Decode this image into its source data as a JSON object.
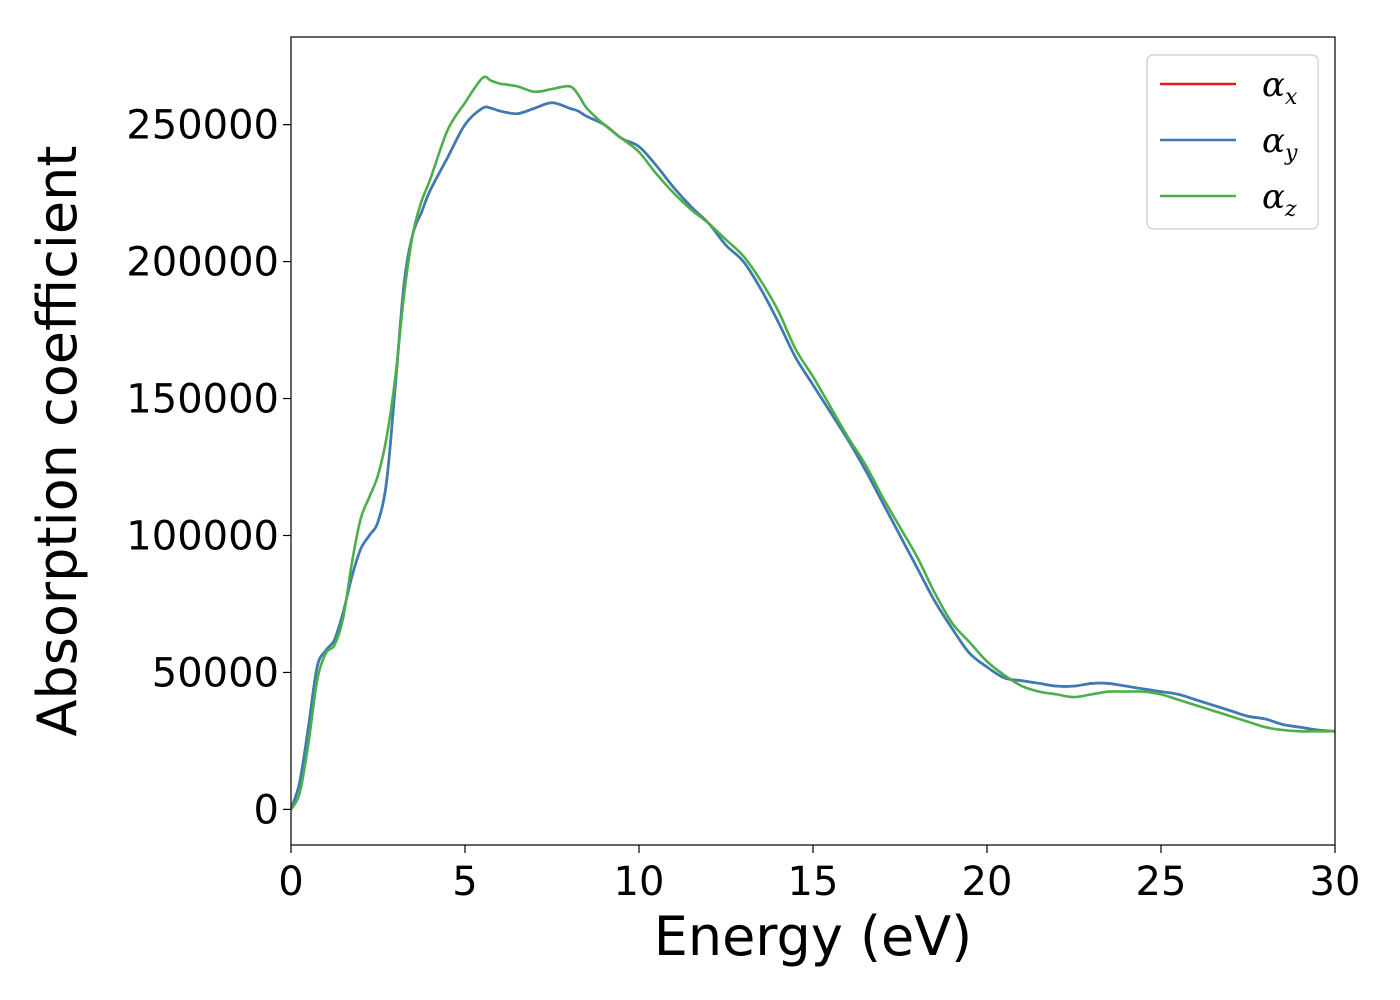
{
  "chart_data": {
    "type": "line",
    "title": "",
    "xlabel": "Energy (eV)",
    "ylabel": "Absorption coefficient",
    "xlim": [
      0,
      30
    ],
    "ylim": [
      -13000,
      282000
    ],
    "xticks": [
      0,
      5,
      10,
      15,
      20,
      25,
      30
    ],
    "xtick_labels": [
      "0",
      "5",
      "10",
      "15",
      "20",
      "25",
      "30"
    ],
    "yticks": [
      0,
      50000,
      100000,
      150000,
      200000,
      250000
    ],
    "ytick_labels": [
      "0",
      "50000",
      "100000",
      "150000",
      "200000",
      "250000"
    ],
    "grid": false,
    "legend_position": "top-right",
    "x": [
      0,
      0.25,
      0.5,
      0.75,
      1.0,
      1.25,
      1.5,
      1.75,
      2.0,
      2.25,
      2.5,
      2.75,
      3.0,
      3.25,
      3.5,
      3.75,
      4.0,
      4.5,
      5.0,
      5.5,
      5.75,
      6.0,
      6.5,
      7.0,
      7.5,
      8.0,
      8.25,
      8.5,
      9.0,
      9.5,
      10.0,
      10.5,
      11.0,
      11.5,
      12.0,
      12.5,
      13.0,
      13.5,
      14.0,
      14.5,
      15.0,
      15.5,
      16.0,
      16.5,
      17.0,
      17.5,
      18.0,
      18.5,
      19.0,
      19.5,
      20.0,
      20.5,
      21.0,
      21.5,
      22.0,
      22.5,
      23.0,
      23.5,
      24.0,
      24.5,
      25.0,
      25.5,
      26.0,
      26.5,
      27.0,
      27.5,
      28.0,
      28.5,
      29.0,
      29.5,
      30.0
    ],
    "series": [
      {
        "name": "α",
        "subscript": "x",
        "color": "#e41a1c",
        "values": [
          0,
          10000,
          30000,
          52000,
          58000,
          62000,
          72000,
          85000,
          95000,
          100000,
          105000,
          120000,
          155000,
          192000,
          210000,
          218000,
          226000,
          238000,
          250000,
          256000,
          256000,
          255000,
          254000,
          256000,
          258000,
          256000,
          255000,
          253000,
          250000,
          245000,
          242000,
          235000,
          227000,
          220000,
          214000,
          206000,
          200000,
          190000,
          178000,
          165000,
          155000,
          145000,
          135000,
          124000,
          112000,
          100000,
          88000,
          76000,
          66000,
          57000,
          52000,
          48000,
          47000,
          46000,
          45000,
          45000,
          46000,
          46000,
          45000,
          44000,
          43000,
          42000,
          40000,
          38000,
          36000,
          34000,
          33000,
          31000,
          30000,
          29000,
          28500
        ]
      },
      {
        "name": "α",
        "subscript": "y",
        "color": "#377eb8",
        "values": [
          0,
          10000,
          30000,
          52000,
          58000,
          62000,
          72000,
          85000,
          95000,
          100000,
          105000,
          120000,
          155000,
          192000,
          210000,
          218000,
          226000,
          238000,
          250000,
          256000,
          256000,
          255000,
          254000,
          256000,
          258000,
          256000,
          255000,
          253000,
          250000,
          245000,
          242000,
          235000,
          227000,
          220000,
          214000,
          206000,
          200000,
          190000,
          178000,
          165000,
          155000,
          145000,
          135000,
          124000,
          112000,
          100000,
          88000,
          76000,
          66000,
          57000,
          52000,
          48000,
          47000,
          46000,
          45000,
          45000,
          46000,
          46000,
          45000,
          44000,
          43000,
          42000,
          40000,
          38000,
          36000,
          34000,
          33000,
          31000,
          30000,
          29000,
          28500
        ]
      },
      {
        "name": "α",
        "subscript": "z",
        "color": "#4daf4a",
        "values": [
          0,
          6000,
          24000,
          47000,
          57000,
          60000,
          70000,
          90000,
          106000,
          114000,
          122000,
          136000,
          158000,
          188000,
          210000,
          222000,
          230000,
          248000,
          258000,
          267000,
          266000,
          265000,
          264000,
          262000,
          263000,
          264000,
          261000,
          256000,
          250000,
          245000,
          240000,
          232000,
          225000,
          219000,
          214000,
          208000,
          202000,
          193000,
          182000,
          168000,
          158000,
          147000,
          136000,
          126000,
          114000,
          103000,
          92000,
          79000,
          68000,
          61000,
          54000,
          49000,
          45000,
          43000,
          42000,
          41000,
          42000,
          43000,
          43000,
          43000,
          42000,
          40000,
          38000,
          36000,
          34000,
          32000,
          30000,
          29000,
          28500,
          28500,
          28500
        ]
      }
    ]
  }
}
